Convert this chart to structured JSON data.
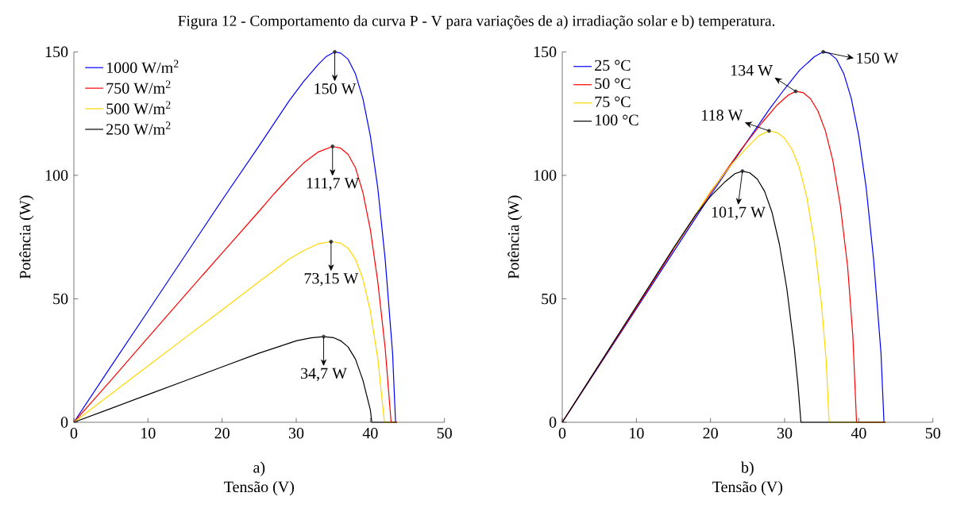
{
  "chart_data": [
    {
      "type": "line",
      "title": "Figura 12 - Comportamento da curva P - V para variações de a) irradiação solar e b) temperatura.",
      "xlabel": "Tensão (V)",
      "ylabel": "Potência (W)",
      "xlim": [
        0,
        50
      ],
      "ylim": [
        0,
        150
      ],
      "xticks": [
        0,
        10,
        20,
        30,
        40,
        50
      ],
      "yticks": [
        0,
        50,
        100,
        150
      ],
      "legend": "top left",
      "series": [
        {
          "name": "1000 W/m$^{2}$",
          "color": "#0000ff",
          "x": [
            0,
            5,
            10,
            15,
            20,
            25,
            27,
            29,
            31,
            33,
            34,
            35.2,
            36,
            37,
            38,
            39,
            40,
            41,
            42,
            43,
            43.4,
            43.6
          ],
          "values": [
            0,
            22.6,
            45,
            67.5,
            90,
            112,
            121,
            130,
            138,
            145,
            148,
            150,
            149.5,
            147,
            141,
            131,
            116,
            95,
            66,
            28,
            0,
            0
          ]
        },
        {
          "name": "750 W/m$^{2}$",
          "color": "#ff0000",
          "x": [
            0,
            5,
            10,
            15,
            20,
            25,
            27,
            29,
            31,
            33,
            34.9,
            36,
            37,
            38,
            39,
            40,
            41,
            42,
            42.8,
            43.6
          ],
          "values": [
            0,
            17,
            34.3,
            51.5,
            68.5,
            85.5,
            92.5,
            99,
            105,
            109.5,
            111.7,
            111,
            108.5,
            103,
            93,
            78,
            57,
            30,
            0,
            0
          ]
        },
        {
          "name": "500 W/m$^{2}$",
          "color": "#ffd700",
          "x": [
            0,
            5,
            10,
            15,
            20,
            25,
            27,
            29,
            31,
            33,
            34.7,
            36,
            37,
            38,
            39,
            40,
            41,
            41.9,
            43.6
          ],
          "values": [
            0,
            11.4,
            22.8,
            34.2,
            45.5,
            57,
            61.5,
            66,
            69.5,
            72.3,
            73.2,
            72.5,
            70.5,
            66,
            58,
            45,
            26,
            0,
            0
          ]
        },
        {
          "name": "250 W/m$^{2}$",
          "color": "#000000",
          "x": [
            0,
            5,
            10,
            15,
            20,
            25,
            28,
            30,
            32,
            33.7,
            35,
            36,
            37,
            38,
            39,
            40,
            40.2,
            43.6
          ],
          "values": [
            0,
            5.6,
            11.2,
            16.8,
            22.4,
            28,
            31,
            33,
            34.2,
            34.7,
            34.3,
            33,
            30.5,
            25.5,
            17,
            5,
            0,
            0
          ]
        }
      ],
      "annotations": [
        {
          "text": "150 W",
          "x": 35.2,
          "y": 150
        },
        {
          "text": "111,7 W",
          "x": 34.9,
          "y": 111.7
        },
        {
          "text": "73,15 W",
          "x": 34.7,
          "y": 73.15
        },
        {
          "text": "34,7 W",
          "x": 33.7,
          "y": 34.7
        },
        "a)"
      ]
    },
    {
      "type": "line",
      "xlabel": "Tensão (V)",
      "ylabel": "Potência (W)",
      "xlim": [
        0,
        50
      ],
      "ylim": [
        0,
        150
      ],
      "xticks": [
        0,
        10,
        20,
        30,
        40,
        50
      ],
      "yticks": [
        0,
        50,
        100,
        150
      ],
      "legend": "top left",
      "series": [
        {
          "name": "25 °C",
          "color": "#0000ff",
          "x": [
            0,
            5,
            10,
            15,
            20,
            25,
            28,
            30,
            32,
            34,
            35.2,
            36,
            37,
            38,
            39,
            40,
            41,
            42,
            43,
            43.4,
            43.6
          ],
          "values": [
            0,
            23,
            46,
            69,
            92,
            114,
            127,
            135,
            142.5,
            148,
            150,
            149.5,
            147,
            141,
            131,
            116,
            95,
            66,
            28,
            0,
            0
          ]
        },
        {
          "name": "50 °C",
          "color": "#ff0000",
          "x": [
            0,
            5,
            10,
            15,
            20,
            24,
            27,
            29,
            30.5,
            31.5,
            32.5,
            33.5,
            34.5,
            35.5,
            36.5,
            37.5,
            38.5,
            39.2,
            39.7,
            43.6
          ],
          "values": [
            0,
            23.3,
            46.5,
            70,
            93,
            110,
            121.5,
            128.5,
            132.5,
            134,
            133.5,
            131,
            126,
            118,
            106,
            88,
            63,
            35,
            0,
            0
          ]
        },
        {
          "name": "75 °C",
          "color": "#ffd700",
          "x": [
            15,
            20,
            23,
            25,
            26.5,
            27.9,
            29,
            30,
            31,
            32,
            33,
            34,
            35,
            35.6,
            36,
            43.6
          ],
          "values": [
            70.2,
            93.5,
            105,
            111.5,
            116,
            118,
            117.3,
            115,
            110.5,
            103,
            91,
            73,
            47,
            25,
            0,
            0
          ]
        },
        {
          "name": "100 °C",
          "color": "#000000",
          "x": [
            0,
            5,
            10,
            15,
            18,
            20,
            22,
            23.3,
            24.3,
            25.3,
            26.3,
            27.3,
            28.3,
            29.3,
            30.3,
            31.3,
            31.8,
            32.2,
            43.6
          ],
          "values": [
            0,
            23.5,
            47,
            70.5,
            84,
            91.5,
            97.5,
            100.7,
            101.7,
            101,
            98.5,
            93.5,
            85,
            72,
            54,
            30,
            15,
            0,
            0
          ]
        }
      ],
      "annotations": [
        {
          "text": "150 W",
          "x": 35.2,
          "y": 150
        },
        {
          "text": "134 W",
          "x": 31.5,
          "y": 134
        },
        {
          "text": "118 W",
          "x": 27.9,
          "y": 118
        },
        {
          "text": "101,7 W",
          "x": 24.3,
          "y": 101.7
        },
        "b)"
      ]
    }
  ]
}
